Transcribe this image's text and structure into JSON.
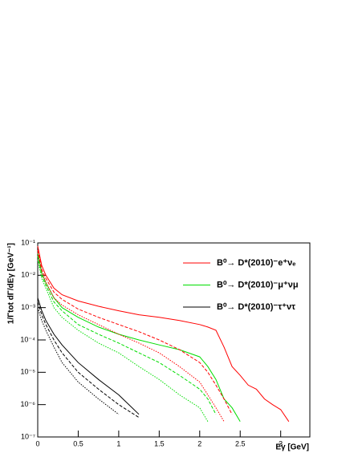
{
  "chart_data": {
    "type": "line",
    "x_label": "Eγ [GeV]",
    "y_label": "1/Γtot dΓ/dEγ [GeV⁻¹]",
    "log_y": true,
    "legend": "top-right",
    "x": [
      0,
      0.05,
      0.1,
      0.2,
      0.3,
      0.5,
      0.75,
      1,
      1.25,
      1.5,
      1.75,
      2,
      2.1,
      2.2,
      2.3,
      2.4,
      2.5,
      2.6,
      2.7,
      2.8,
      2.9,
      3,
      3.1
    ],
    "series": [
      {
        "name": "B⁰→ D*(2010)⁻e⁺νₑ",
        "color": "#ff0000",
        "dash": "solid",
        "values": [
          0.08,
          0.02,
          0.01,
          0.004,
          0.0025,
          0.0016,
          0.0011,
          0.0008,
          0.0006,
          0.0005,
          0.0004,
          0.0003,
          0.00025,
          0.0002,
          6e-05,
          1.5e-05,
          8e-06,
          4e-06,
          3e-06,
          1.5e-06,
          1e-06,
          7e-07,
          3e-07
        ]
      },
      {
        "name": "B⁰→ D*(2010)⁻μ⁺νμ",
        "color": "#00dd00",
        "dash": "solid",
        "values": [
          0.05,
          0.012,
          0.006,
          0.002,
          0.001,
          0.0005,
          0.00025,
          0.00015,
          0.0001,
          7e-05,
          5e-05,
          3e-05,
          1.5e-05,
          6e-06,
          1.5e-06,
          8e-07,
          3e-07,
          null,
          null,
          null,
          null,
          null,
          null
        ]
      },
      {
        "name": "B⁰→ D*(2010)⁻τ⁺ντ",
        "color": "#000000",
        "dash": "solid",
        "values": [
          0.002,
          0.0008,
          0.0004,
          0.00015,
          7e-05,
          2e-05,
          6e-06,
          2e-06,
          5e-07,
          null,
          null,
          null,
          null,
          null,
          null,
          null,
          null,
          null,
          null,
          null,
          null,
          null,
          null
        ]
      },
      {
        "color": "#ff0000",
        "dash": "dashed",
        "values": [
          0.06,
          0.015,
          0.008,
          0.003,
          0.0018,
          0.0009,
          0.0005,
          0.0003,
          0.00018,
          0.0001,
          5e-05,
          2e-05,
          1e-05,
          4e-06,
          1.5e-06,
          5e-07,
          null,
          null,
          null,
          null,
          null,
          null,
          null
        ]
      },
      {
        "color": "#ff0000",
        "dash": "dotted",
        "values": [
          0.05,
          0.012,
          0.006,
          0.002,
          0.0012,
          0.0006,
          0.0003,
          0.00015,
          8e-05,
          4e-05,
          1.5e-05,
          5e-06,
          2e-06,
          8e-07,
          3e-07,
          null,
          null,
          null,
          null,
          null,
          null,
          null,
          null
        ]
      },
      {
        "color": "#00dd00",
        "dash": "dashed",
        "values": [
          0.04,
          0.01,
          0.005,
          0.0015,
          0.0008,
          0.0003,
          0.00015,
          8e-05,
          4e-05,
          2e-05,
          8e-06,
          3e-06,
          1.5e-06,
          5e-07,
          null,
          null,
          null,
          null,
          null,
          null,
          null,
          null,
          null
        ]
      },
      {
        "color": "#00dd00",
        "dash": "dotted",
        "values": [
          0.03,
          0.008,
          0.004,
          0.001,
          0.0005,
          0.0002,
          8e-05,
          4e-05,
          1.5e-05,
          6e-06,
          2e-06,
          8e-07,
          3e-07,
          null,
          null,
          null,
          null,
          null,
          null,
          null,
          null,
          null,
          null
        ]
      },
      {
        "color": "#000000",
        "dash": "dashed",
        "values": [
          0.0015,
          0.0006,
          0.0003,
          0.0001,
          4e-05,
          1e-05,
          3e-06,
          1e-06,
          4e-07,
          null,
          null,
          null,
          null,
          null,
          null,
          null,
          null,
          null,
          null,
          null,
          null,
          null,
          null
        ]
      },
      {
        "color": "#000000",
        "dash": "dotted",
        "values": [
          0.001,
          0.0004,
          0.0002,
          6e-05,
          2e-05,
          5e-06,
          1.5e-06,
          5e-07,
          null,
          null,
          null,
          null,
          null,
          null,
          null,
          null,
          null,
          null,
          null,
          null,
          null,
          null,
          null
        ]
      }
    ],
    "xlim": [
      0,
      3.36
    ],
    "ylim": [
      1e-07,
      0.1
    ],
    "xticks": [
      0,
      0.5,
      1,
      1.5,
      2,
      2.5,
      3
    ],
    "yticks": [
      {
        "value": 0.1,
        "label": "10⁻¹"
      },
      {
        "value": 0.01,
        "label": "10⁻²"
      },
      {
        "value": 0.001,
        "label": "10⁻³"
      },
      {
        "value": 0.0001,
        "label": "10⁻⁴"
      },
      {
        "value": 1e-05,
        "label": "10⁻⁵"
      },
      {
        "value": 1e-06,
        "label": "10⁻⁶"
      },
      {
        "value": 1e-07,
        "label": "10⁻⁷"
      }
    ]
  }
}
